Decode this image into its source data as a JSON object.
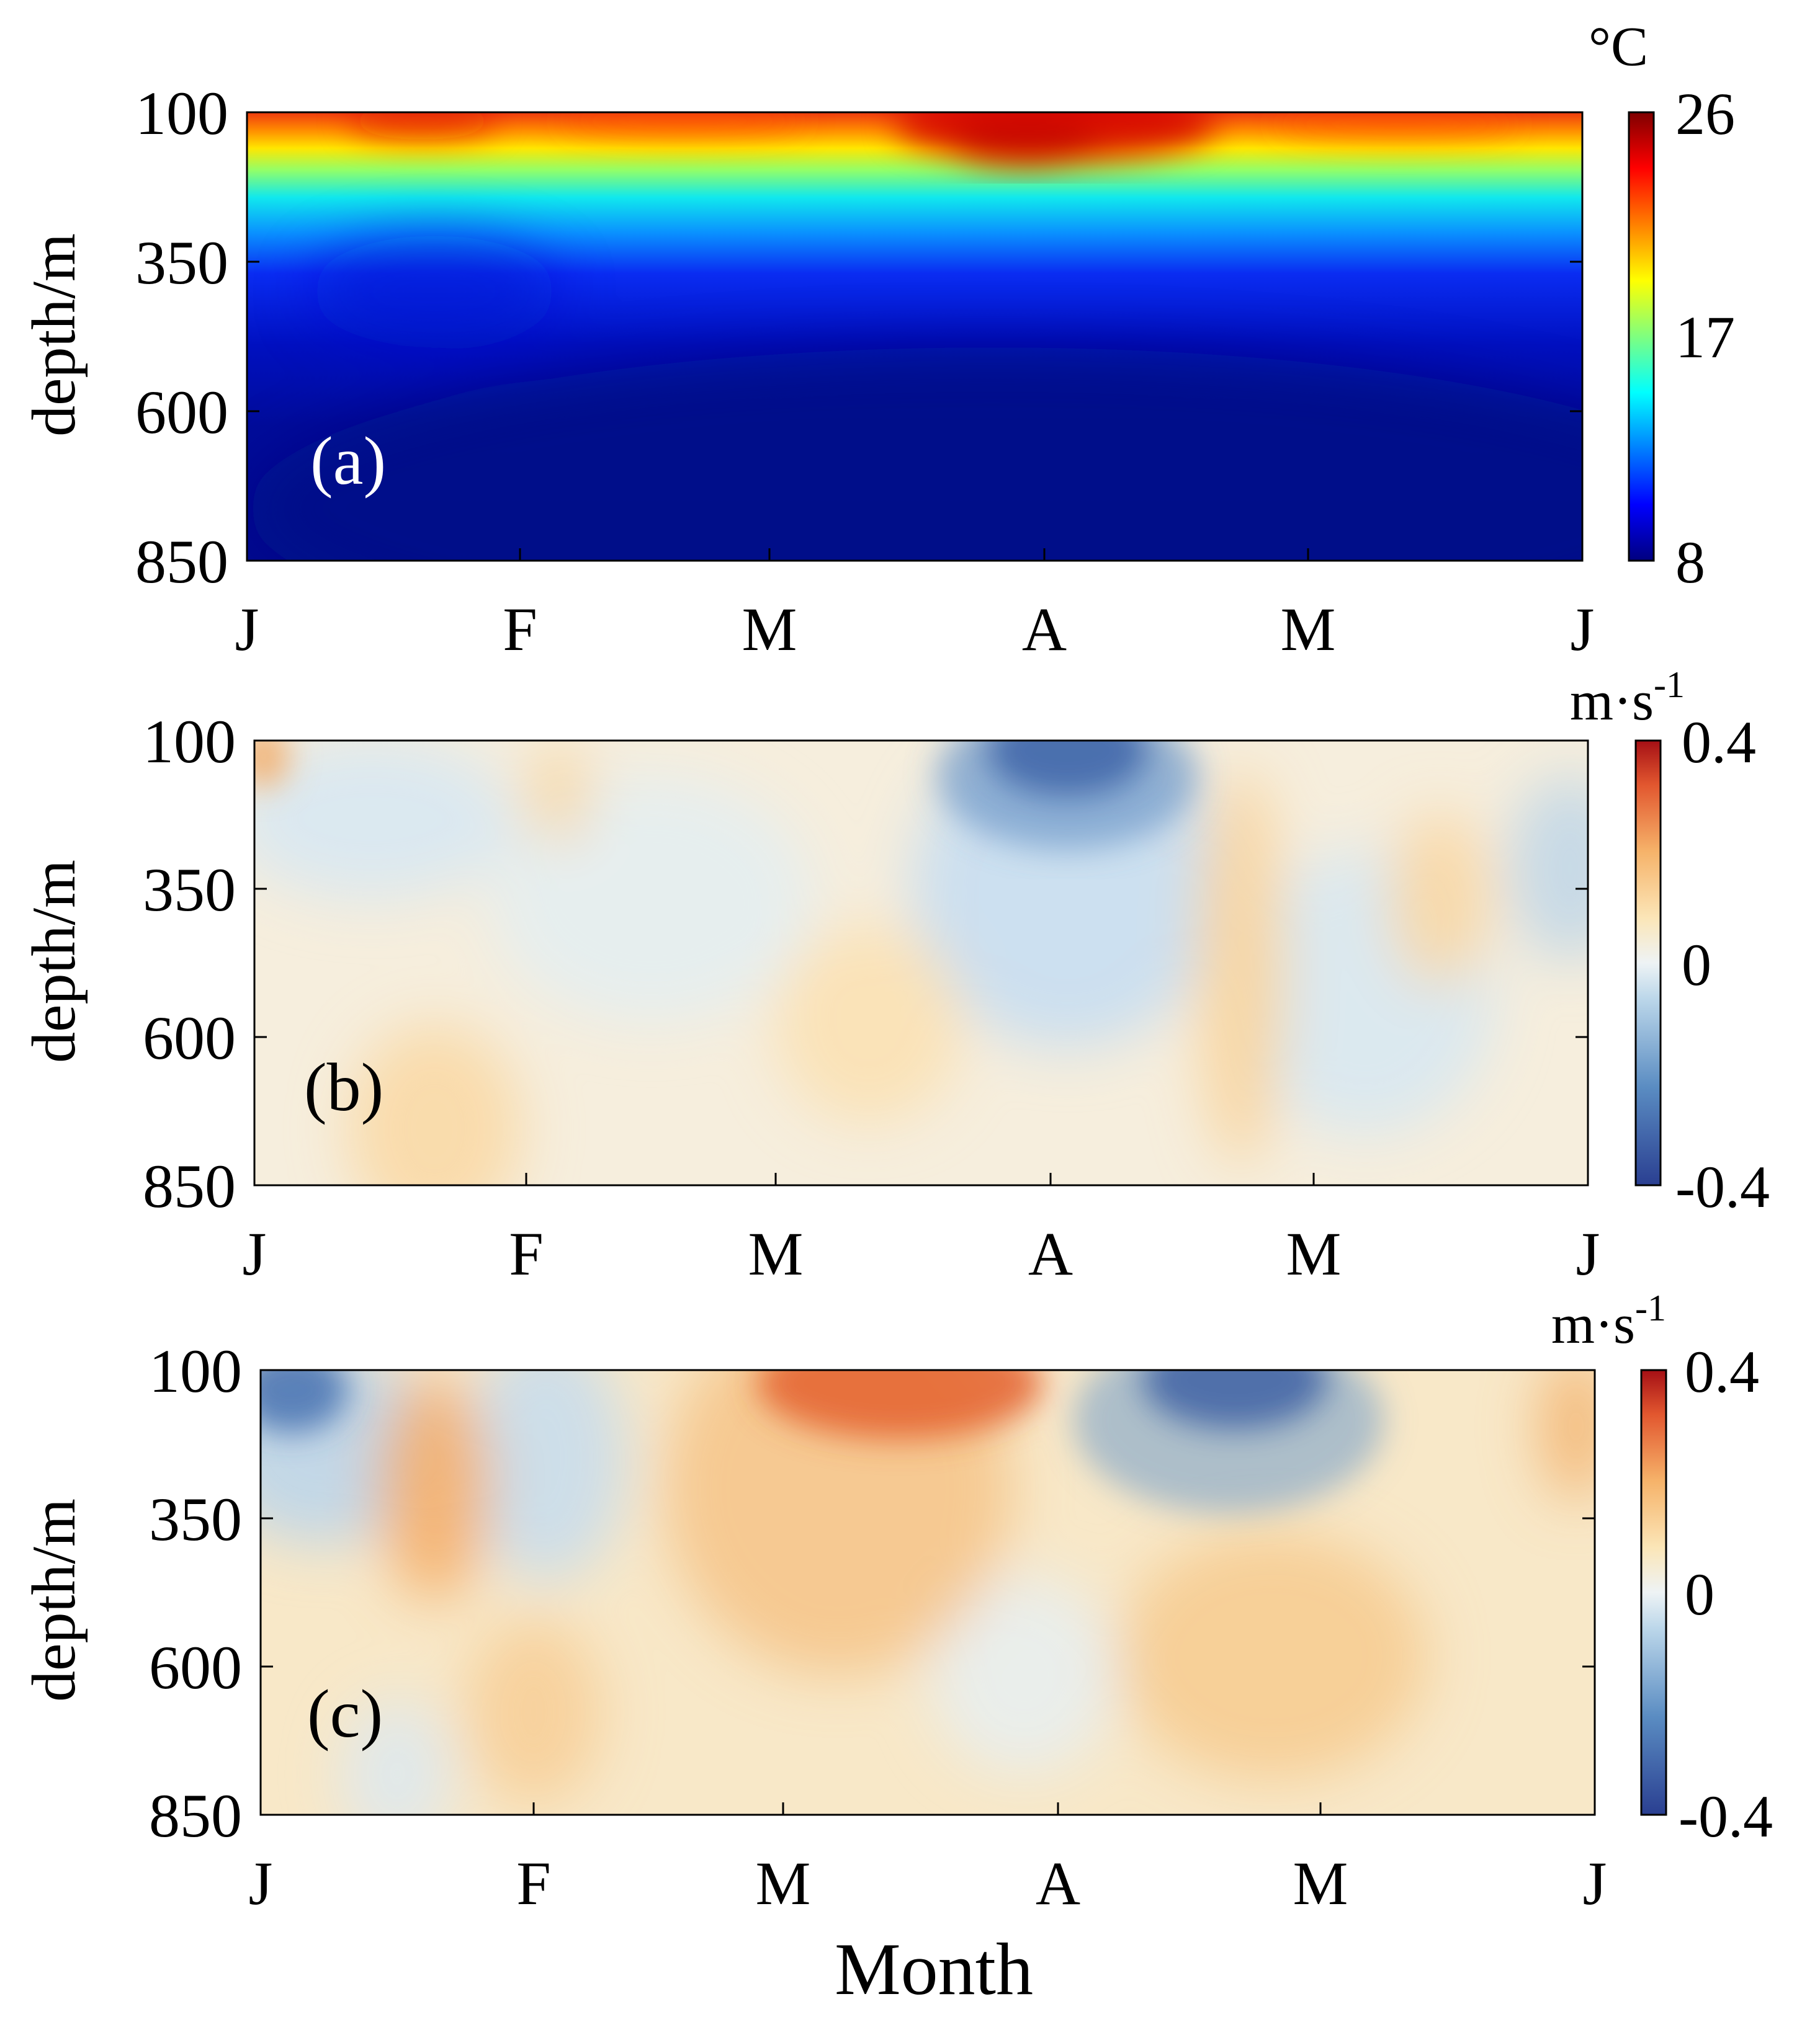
{
  "chart_data": [
    {
      "type": "heatmap",
      "panel_label": "(a)",
      "ylabel": "depth/m",
      "y_ticks": [
        "100",
        "350",
        "600",
        "850"
      ],
      "y_range": [
        100,
        850
      ],
      "x_ticks": [
        "J",
        "F",
        "M",
        "A",
        "M",
        "J"
      ],
      "colorbar": {
        "unit": "°C",
        "ticks": [
          "26",
          "17",
          "8"
        ],
        "range": [
          8,
          26
        ],
        "colormap": "jet",
        "colors": [
          "#00007f",
          "#0000ff",
          "#007fff",
          "#00ffff",
          "#7fff7f",
          "#ffff00",
          "#ff7f00",
          "#ff0000",
          "#7f0000"
        ]
      },
      "description_of_field": "warm surface layer near 100 m, sharp thermocline to ~350 m, cold below",
      "surface_values": [
        24,
        25,
        24,
        24,
        23,
        25,
        26,
        25,
        24,
        24,
        24
      ]
    },
    {
      "type": "heatmap",
      "panel_label": "(b)",
      "ylabel": "depth/m",
      "y_ticks": [
        "100",
        "350",
        "600",
        "850"
      ],
      "y_range": [
        100,
        850
      ],
      "x_ticks": [
        "J",
        "F",
        "M",
        "A",
        "M",
        "J"
      ],
      "colorbar": {
        "unit": "m·s",
        "unit_exp": "-1",
        "ticks": [
          "0.4",
          "0",
          "-0.4"
        ],
        "range": [
          -0.4,
          0.4
        ],
        "colormap": "RdBu_r",
        "colors": [
          "#2a3f91",
          "#5a8cc2",
          "#bcd7ea",
          "#eef3f5",
          "#fbe6b8",
          "#f6b36a",
          "#e2572f",
          "#a50f15"
        ]
      }
    },
    {
      "type": "heatmap",
      "panel_label": "(c)",
      "ylabel": "depth/m",
      "y_ticks": [
        "100",
        "350",
        "600",
        "850"
      ],
      "y_range": [
        100,
        850
      ],
      "x_ticks": [
        "J",
        "F",
        "M",
        "A",
        "M",
        "J"
      ],
      "xlabel": "Month",
      "colorbar": {
        "unit": "m·s",
        "unit_exp": "-1",
        "ticks": [
          "0.4",
          "0",
          "-0.4"
        ],
        "range": [
          -0.4,
          0.4
        ],
        "colormap": "RdBu_r",
        "colors": [
          "#2a3f91",
          "#5a8cc2",
          "#bcd7ea",
          "#eef3f5",
          "#fbe6b8",
          "#f6b36a",
          "#e2572f",
          "#a50f15"
        ]
      }
    }
  ]
}
